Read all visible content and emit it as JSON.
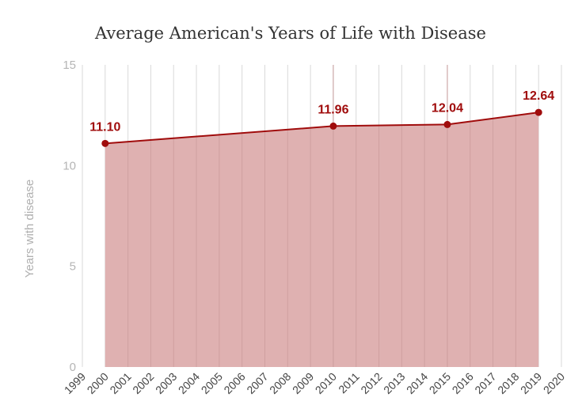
{
  "chart_data": {
    "type": "area",
    "title": "Average American's Years of Life with Disease",
    "xlabel": "",
    "ylabel": "Years with disease",
    "x_ticks": [
      "1999",
      "2000",
      "2001",
      "2002",
      "2003",
      "2004",
      "2005",
      "2006",
      "2007",
      "2008",
      "2009",
      "2010",
      "2011",
      "2012",
      "2013",
      "2014",
      "2015",
      "2016",
      "2017",
      "2018",
      "2019",
      "2020"
    ],
    "y_ticks": [
      "0",
      "5",
      "10",
      "15"
    ],
    "xlim": [
      1999,
      2020
    ],
    "ylim": [
      0,
      15
    ],
    "grid": "vertical",
    "legend": "none",
    "series": [
      {
        "x": [
          2000,
          2010,
          2015,
          2019
        ],
        "values": [
          11.1,
          11.96,
          12.04,
          12.64
        ],
        "labels": [
          "11.10",
          "11.96",
          "12.04",
          "12.64"
        ],
        "line_color": "#a00c0c",
        "fill_color": "#dfb1b1"
      }
    ]
  }
}
